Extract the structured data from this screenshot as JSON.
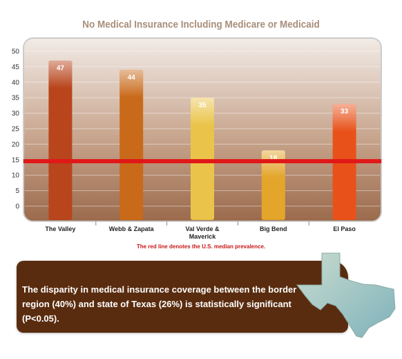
{
  "chart_data": {
    "type": "bar",
    "title": "No Medical Insurance Including Medicare or Medicaid",
    "categories": [
      "The Valley",
      "Webb & Zapata",
      "Val Verde & Maverick",
      "Big Bend",
      "El Paso"
    ],
    "values": [
      47,
      44,
      35,
      18,
      33
    ],
    "value_labels": [
      "47",
      "44",
      "35",
      "18",
      "33"
    ],
    "y_ticks": [
      "0",
      "5",
      "10",
      "15",
      "20",
      "25",
      "30",
      "35",
      "40",
      "45",
      "50"
    ],
    "ylim": [
      -4,
      52
    ],
    "xlabel": "",
    "ylabel": "",
    "grid": true,
    "reference_line": {
      "value": 14.5,
      "color": "#e01818"
    },
    "bar_colors": [
      "#b8451c",
      "#c96a1a",
      "#eac44a",
      "#e3a52a",
      "#e8521a"
    ]
  },
  "note": "The red line denotes the U.S. median prevalence.",
  "callout": {
    "text": "The disparity in medical insurance coverage between the border region (40%) and state of Texas (26%) is statistically significant (P<0.05).",
    "background": "#5a2c0f"
  },
  "texas_map": {
    "name": "texas-map-icon",
    "color": "#9cc3c3"
  }
}
